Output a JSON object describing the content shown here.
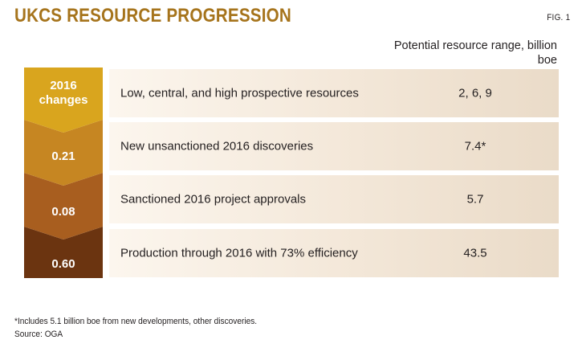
{
  "title": "UKCS RESOURCE PROGRESSION",
  "figure_label": "FIG. 1",
  "column_header": "Potential resource range, billion boe",
  "colors": {
    "title": "#a6741c",
    "band_1": "#d9a51e",
    "band_2": "#c68622",
    "band_3": "#a85e1f",
    "band_4": "#6b3410"
  },
  "rows": [
    {
      "chevron": "2016 changes",
      "label": "Low, central, and high prospective resources",
      "value": "2, 6, 9"
    },
    {
      "chevron": "0.21",
      "label": "New unsanctioned 2016 discoveries",
      "value": "7.4*"
    },
    {
      "chevron": "0.08",
      "label": "Sanctioned 2016 project approvals",
      "value": "5.7"
    },
    {
      "chevron": "0.60",
      "label": "Production through 2016 with 73% efficiency",
      "value": "43.5"
    }
  ],
  "footnote": "*Includes 5.1 billion boe from new developments, other discoveries.",
  "source": "Source: OGA"
}
